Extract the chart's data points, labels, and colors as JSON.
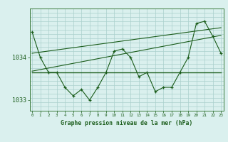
{
  "x": [
    0,
    1,
    2,
    3,
    4,
    5,
    6,
    7,
    8,
    9,
    10,
    11,
    12,
    13,
    14,
    15,
    16,
    17,
    18,
    19,
    20,
    21,
    22,
    23
  ],
  "y_main": [
    1034.6,
    1034.0,
    1033.65,
    1033.65,
    1033.3,
    1033.1,
    1033.25,
    1033.0,
    1033.3,
    1033.65,
    1034.15,
    1034.2,
    1034.0,
    1033.55,
    1033.65,
    1033.2,
    1033.3,
    1033.3,
    1033.65,
    1034.0,
    1034.8,
    1034.85,
    1034.5,
    1034.1
  ],
  "trend1_x": [
    0,
    23
  ],
  "trend1_y": [
    1034.1,
    1034.7
  ],
  "trend2_x": [
    0,
    23
  ],
  "trend2_y": [
    1033.68,
    1034.52
  ],
  "trend3_x": [
    0,
    23
  ],
  "trend3_y": [
    1033.65,
    1033.65
  ],
  "xlim": [
    -0.3,
    23.3
  ],
  "ylim": [
    1032.75,
    1035.15
  ],
  "yticks": [
    1033.0,
    1034.0
  ],
  "ytick_labels": [
    "1033",
    "1034"
  ],
  "xtick_labels": [
    "0",
    "1",
    "2",
    "3",
    "4",
    "5",
    "6",
    "7",
    "8",
    "9",
    "10",
    "11",
    "12",
    "13",
    "14",
    "15",
    "16",
    "17",
    "18",
    "19",
    "20",
    "21",
    "22",
    "23"
  ],
  "xlabel": "Graphe pression niveau de la mer (hPa)",
  "bg_color": "#daf0ee",
  "grid_color": "#aacfcc",
  "line_color": "#1a5c1a",
  "text_color": "#1a5c1a",
  "tick_color": "#1a5c1a",
  "border_color": "#3a7a3a",
  "fig_width": 3.2,
  "fig_height": 2.0,
  "dpi": 100
}
